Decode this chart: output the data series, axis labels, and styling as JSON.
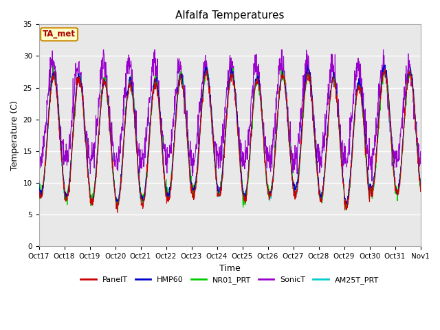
{
  "title": "Alfalfa Temperatures",
  "xlabel": "Time",
  "ylabel": "Temperature (C)",
  "ylim": [
    0,
    35
  ],
  "yticks": [
    0,
    5,
    10,
    15,
    20,
    25,
    30,
    35
  ],
  "bg_color": "#e8e8e8",
  "fig_bg": "#ffffff",
  "annotation_text": "TA_met",
  "annotation_box_color": "#ffffcc",
  "annotation_border_color": "#cc8800",
  "annotation_text_color": "#aa0000",
  "legend": [
    {
      "label": "PanelT",
      "color": "#cc0000",
      "lw": 0.8
    },
    {
      "label": "HMP60",
      "color": "#0000cc",
      "lw": 0.8
    },
    {
      "label": "NR01_PRT",
      "color": "#00cc00",
      "lw": 0.8
    },
    {
      "label": "SonicT",
      "color": "#9900cc",
      "lw": 0.8
    },
    {
      "label": "AM25T_PRT",
      "color": "#00cccc",
      "lw": 0.8
    }
  ],
  "x_tick_labels": [
    "Oct 17",
    "Oct 18",
    "Oct 19",
    "Oct 20",
    "Oct 21",
    "Oct 22",
    "Oct 23",
    "Oct 24",
    "Oct 25",
    "Oct 26",
    "Oct 27",
    "Oct 28",
    "Oct 29",
    "Oct 30",
    "Oct 31",
    "Nov 1"
  ],
  "n_points": 1440,
  "end_day": 15,
  "tick_positions": [
    0,
    1,
    2,
    3,
    4,
    5,
    6,
    7,
    8,
    9,
    10,
    11,
    12,
    13,
    14,
    15
  ]
}
